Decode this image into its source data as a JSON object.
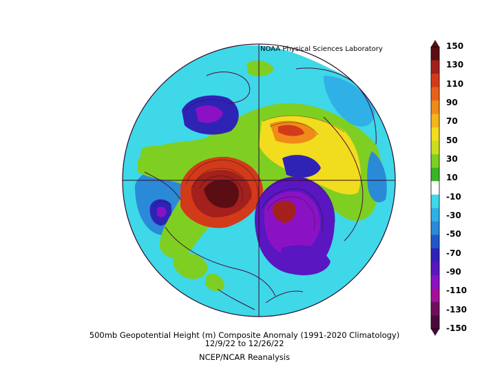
{
  "credit": "NOAA Physical Sciences Laboratory",
  "caption": {
    "title": "500mb Geopotential Height (m) Composite Anomaly (1991-2020 Climatology)",
    "dates": "12/9/22   to 12/26/22",
    "source": "NCEP/NCAR Reanalysis"
  },
  "colorbar": {
    "labels": [
      "150",
      "130",
      "110",
      "90",
      "70",
      "50",
      "30",
      "10",
      "-10",
      "-30",
      "-50",
      "-70",
      "-90",
      "-110",
      "-130",
      "-150"
    ],
    "colors": [
      "#5b0d14",
      "#a3201c",
      "#d23a1a",
      "#e8611a",
      "#f08a19",
      "#f4b41d",
      "#f2dc1e",
      "#c8df1f",
      "#7fcf22",
      "#3cb42a",
      "#ffffff",
      "#3ed8e8",
      "#2fb0e6",
      "#2a8ad8",
      "#2156c8",
      "#2f23b6",
      "#5a16c0",
      "#8b12c4",
      "#a50e9a",
      "#6d0f5c",
      "#4a0a3c"
    ]
  }
}
